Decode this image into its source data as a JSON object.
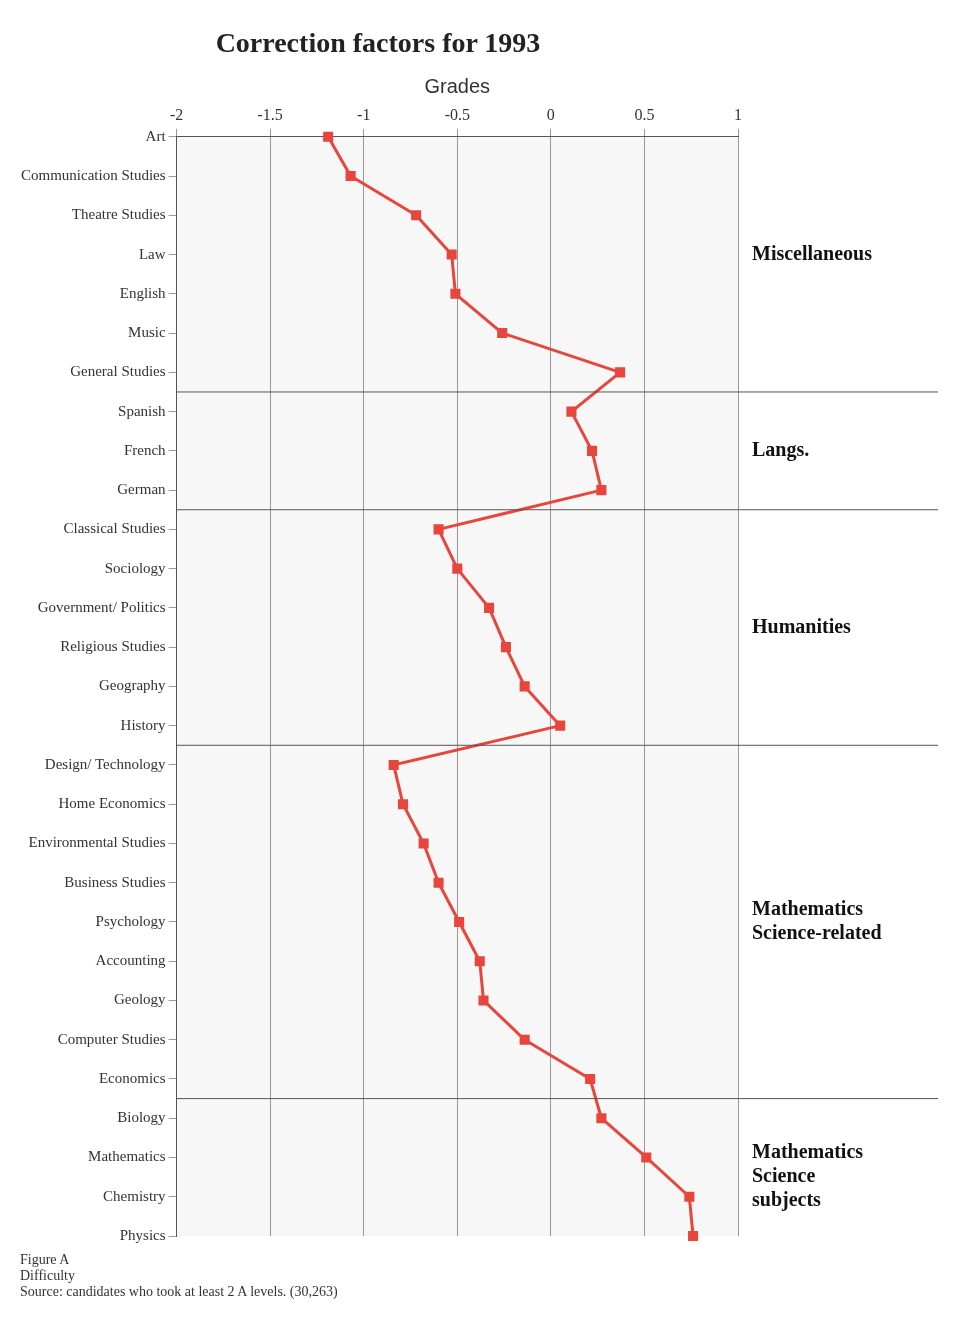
{
  "chart_data": {
    "type": "line",
    "title": "Correction factors for 1993",
    "xlabel": "Grades",
    "orientation": "horizontal",
    "categories": [
      "Art",
      "Communication Studies",
      "Theatre Studies",
      "Law",
      "English",
      "Music",
      "General Studies",
      "Spanish",
      "French",
      "German",
      "Classical Studies",
      "Sociology",
      "Government/ Politics",
      "Religious Studies",
      "Geography",
      "History",
      "Design/ Technology",
      "Home Economics",
      "Environmental Studies",
      "Business Studies",
      "Psychology",
      "Accounting",
      "Geology",
      "Computer Studies",
      "Economics",
      "Biology",
      "Mathematics",
      "Chemistry",
      "Physics"
    ],
    "series": [
      {
        "color": "#e8453c",
        "values": [
          -1.19,
          -1.07,
          -0.72,
          -0.53,
          -0.51,
          -0.26,
          0.37,
          0.11,
          0.22,
          0.27,
          -0.6,
          -0.5,
          -0.33,
          -0.24,
          -0.14,
          0.05,
          -0.84,
          -0.79,
          -0.68,
          -0.6,
          -0.49,
          -0.38,
          -0.36,
          -0.14,
          0.21,
          0.27,
          0.51,
          0.74,
          0.76
        ]
      }
    ],
    "xlim": [
      -2,
      1
    ],
    "xticks": [
      -2,
      -1.5,
      -1,
      -0.5,
      0,
      0.5,
      1
    ],
    "grid": "x",
    "marker": "square",
    "line_style": "solid",
    "bands": [
      {
        "axis": "y",
        "from": "Art",
        "to": "General Studies",
        "label": "Miscellaneous",
        "color": "#f7f7f7"
      },
      {
        "axis": "y",
        "from": "Spanish",
        "to": "German",
        "label": "Langs.",
        "color": "#f7f7f7"
      },
      {
        "axis": "y",
        "from": "Classical Studies",
        "to": "History",
        "label": "Humanities",
        "color": "#f7f7f7"
      },
      {
        "axis": "y",
        "from": "Design/ Technology",
        "to": "Economics",
        "label": "Mathematics Science-related",
        "color": "#f7f7f7"
      },
      {
        "axis": "y",
        "from": "Biology",
        "to": "Physics",
        "label": "Mathematics Science subjects",
        "color": "#f7f7f7"
      }
    ],
    "annotations": [
      "Figure A",
      "Difficulty",
      "Source: candidates who took at least 2 A levels. (30,263)"
    ]
  }
}
